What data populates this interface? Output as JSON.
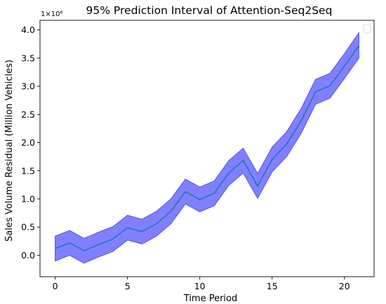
{
  "chart_data": {
    "type": "area",
    "title": "95% Prediction Interval of Attention-Seq2Seq",
    "xlabel": "Time Period",
    "ylabel": "Sales Volume Residual (Million Vehicles)",
    "y_scale_label": "1×10⁶",
    "y_scale_factor": 1000000,
    "xlim": [
      -1.05,
      22.05
    ],
    "ylim": [
      -380000,
      4170000
    ],
    "x_ticks": [
      0,
      5,
      10,
      15,
      20
    ],
    "x_tick_labels": [
      "0",
      "5",
      "10",
      "15",
      "20"
    ],
    "y_ticks": [
      0,
      500000,
      1000000,
      1500000,
      2000000,
      2500000,
      3000000,
      3500000,
      4000000
    ],
    "y_tick_labels": [
      "0.0",
      "0.5",
      "1.0",
      "1.5",
      "2.0",
      "2.5",
      "3.0",
      "3.5",
      "4.0"
    ],
    "grid": false,
    "legend": "top-right, empty",
    "x": [
      0,
      1,
      2,
      3,
      4,
      5,
      6,
      7,
      8,
      9,
      10,
      11,
      12,
      13,
      14,
      15,
      16,
      17,
      18,
      19,
      20,
      21
    ],
    "series": [
      {
        "role": "prediction",
        "values": [
          120000,
          220000,
          80000,
          190000,
          290000,
          490000,
          420000,
          560000,
          780000,
          1130000,
          990000,
          1100000,
          1460000,
          1680000,
          1230000,
          1700000,
          1970000,
          2380000,
          2900000,
          3010000,
          3360000,
          3720000
        ]
      },
      {
        "role": "upper-bound",
        "values": [
          340000,
          440000,
          300000,
          410000,
          510000,
          710000,
          640000,
          780000,
          1000000,
          1350000,
          1210000,
          1320000,
          1680000,
          1900000,
          1450000,
          1920000,
          2190000,
          2600000,
          3120000,
          3230000,
          3580000,
          3950000
        ]
      },
      {
        "role": "lower-bound",
        "values": [
          -100000,
          0,
          -140000,
          -30000,
          70000,
          270000,
          200000,
          340000,
          560000,
          910000,
          770000,
          880000,
          1240000,
          1460000,
          1010000,
          1480000,
          1750000,
          2160000,
          2680000,
          2790000,
          3140000,
          3500000
        ]
      }
    ],
    "colors": {
      "band": "#6464ff",
      "band_edge": "#5050ee",
      "line": "#1f77b4",
      "axes": "#000000"
    }
  }
}
